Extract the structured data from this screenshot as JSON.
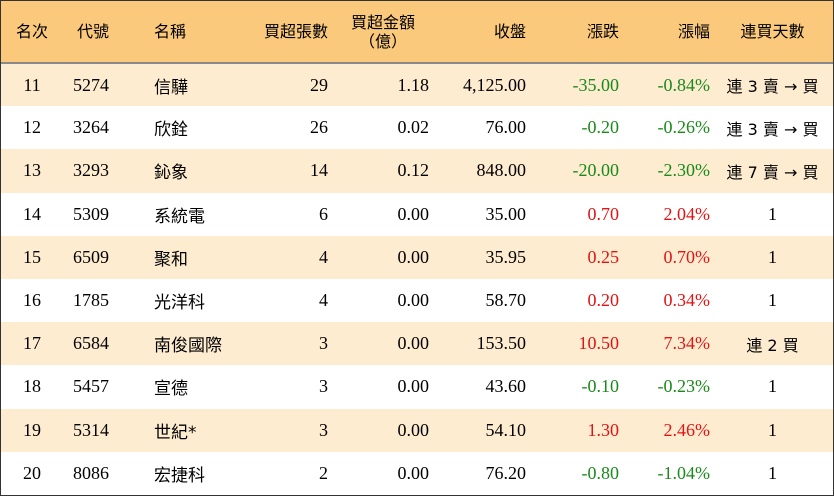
{
  "headers": {
    "rank": "名次",
    "code": "代號",
    "name": "名稱",
    "net_buy_lots": "買超張數",
    "net_buy_amount_line1": "買超金額",
    "net_buy_amount_line2": "（億）",
    "close": "收盤",
    "change": "漲跌",
    "change_pct": "漲幅",
    "consecutive_days": "連買天數"
  },
  "colors": {
    "header_bg": "#fbc97c",
    "stripe_bg": "#feecd1",
    "negative": "#1a8a1a",
    "positive": "#e11414"
  },
  "rows": [
    {
      "rank": "11",
      "code": "5274",
      "name": "信驊",
      "lots": "29",
      "amount": "1.18",
      "close": "4,125.00",
      "change": "-35.00",
      "pct": "-0.84%",
      "days": "連 3 賣 → 買",
      "dir": "neg"
    },
    {
      "rank": "12",
      "code": "3264",
      "name": "欣銓",
      "lots": "26",
      "amount": "0.02",
      "close": "76.00",
      "change": "-0.20",
      "pct": "-0.26%",
      "days": "連 3 賣 → 買",
      "dir": "neg"
    },
    {
      "rank": "13",
      "code": "3293",
      "name": "鈊象",
      "lots": "14",
      "amount": "0.12",
      "close": "848.00",
      "change": "-20.00",
      "pct": "-2.30%",
      "days": "連 7 賣 → 買",
      "dir": "neg"
    },
    {
      "rank": "14",
      "code": "5309",
      "name": "系統電",
      "lots": "6",
      "amount": "0.00",
      "close": "35.00",
      "change": "0.70",
      "pct": "2.04%",
      "days": "1",
      "dir": "pos"
    },
    {
      "rank": "15",
      "code": "6509",
      "name": "聚和",
      "lots": "4",
      "amount": "0.00",
      "close": "35.95",
      "change": "0.25",
      "pct": "0.70%",
      "days": "1",
      "dir": "pos"
    },
    {
      "rank": "16",
      "code": "1785",
      "name": "光洋科",
      "lots": "4",
      "amount": "0.00",
      "close": "58.70",
      "change": "0.20",
      "pct": "0.34%",
      "days": "1",
      "dir": "pos"
    },
    {
      "rank": "17",
      "code": "6584",
      "name": "南俊國際",
      "lots": "3",
      "amount": "0.00",
      "close": "153.50",
      "change": "10.50",
      "pct": "7.34%",
      "days": "連 2 買",
      "dir": "pos"
    },
    {
      "rank": "18",
      "code": "5457",
      "name": "宣德",
      "lots": "3",
      "amount": "0.00",
      "close": "43.60",
      "change": "-0.10",
      "pct": "-0.23%",
      "days": "1",
      "dir": "neg"
    },
    {
      "rank": "19",
      "code": "5314",
      "name": "世紀*",
      "lots": "3",
      "amount": "0.00",
      "close": "54.10",
      "change": "1.30",
      "pct": "2.46%",
      "days": "1",
      "dir": "pos"
    },
    {
      "rank": "20",
      "code": "8086",
      "name": "宏捷科",
      "lots": "2",
      "amount": "0.00",
      "close": "76.20",
      "change": "-0.80",
      "pct": "-1.04%",
      "days": "1",
      "dir": "neg"
    }
  ]
}
